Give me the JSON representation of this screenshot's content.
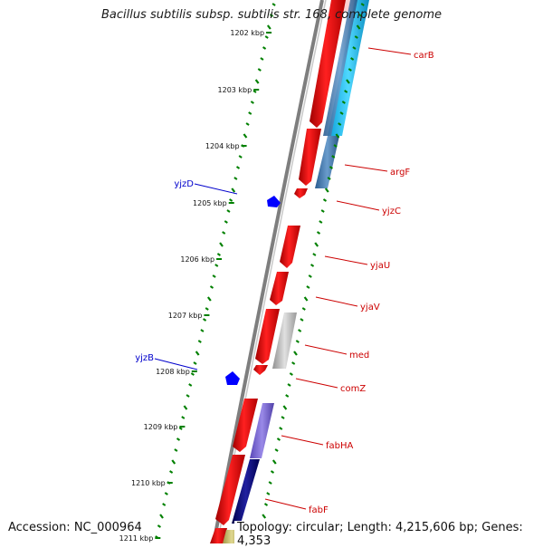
{
  "title": "Bacillus subtilis subsp. subtilis str. 168, complete genome",
  "footer": {
    "accession": "Accession: NC_000964",
    "summary": "Topology: circular; Length: 4,215,606 bp; Genes: 4,353"
  },
  "scale_ticks": [
    "1202 kbp",
    "1203 kbp",
    "1204 kbp",
    "1205 kbp",
    "1206 kbp",
    "1207 kbp",
    "1208 kbp",
    "1209 kbp",
    "1210 kbp",
    "1211 kbp"
  ],
  "genes_right": [
    "carB",
    "argF",
    "yjzC",
    "yjaU",
    "yjaV",
    "med",
    "comZ",
    "fabHA",
    "fabF"
  ],
  "genes_left": [
    "yjzD",
    "yjzB"
  ],
  "colors": {
    "cds": "#ff0000",
    "right_label": "#cc0000",
    "left_label": "#0000cc",
    "left_feature": "#0000ff",
    "tick": "#008000",
    "backbone": "#808080"
  }
}
